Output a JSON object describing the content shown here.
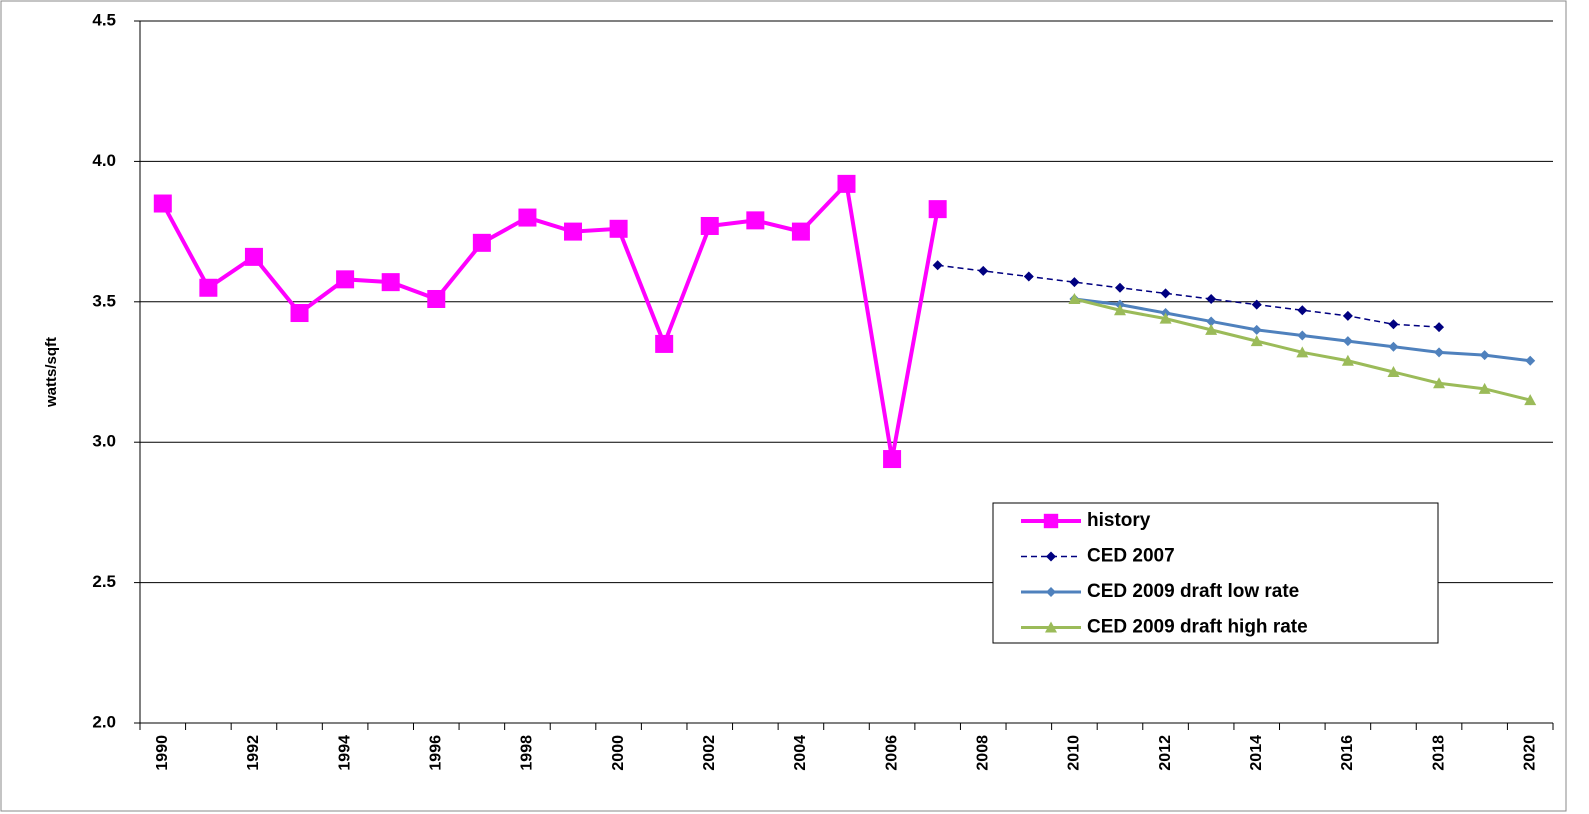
{
  "chart_data": {
    "type": "line",
    "y_label": "watts/sqft",
    "categories": [
      "1990",
      null,
      "1992",
      null,
      "1994",
      null,
      "1996",
      null,
      "1998",
      null,
      "2000",
      null,
      "2002",
      null,
      "2004",
      null,
      "2006",
      null,
      "2008",
      null,
      "2010",
      null,
      "2012",
      null,
      "2014",
      null,
      "2016",
      null,
      "2018",
      null,
      "2020"
    ],
    "ylim": [
      2.0,
      4.5
    ],
    "yticks": [
      {
        "value": 2,
        "label": "2.0"
      },
      2.5,
      {
        "value": 3,
        "label": "3.0"
      },
      3.5,
      {
        "value": 4,
        "label": "4.0"
      },
      4.5
    ],
    "grid": true,
    "legend_position": "lower-right",
    "series": [
      {
        "name": "history",
        "color": "#ff00ff",
        "marker": "square",
        "dashed": false,
        "values": [
          3.85,
          3.55,
          3.66,
          3.46,
          3.58,
          3.57,
          3.51,
          3.71,
          3.8,
          3.75,
          3.76,
          3.35,
          3.77,
          3.79,
          3.75,
          3.92,
          2.94,
          3.83,
          null,
          null,
          null,
          null,
          null,
          null,
          null,
          null,
          null,
          null,
          null,
          null,
          null
        ]
      },
      {
        "name": "CED 2007",
        "color": "#000080",
        "marker": "diamond",
        "dashed": true,
        "values": [
          null,
          null,
          null,
          null,
          null,
          null,
          null,
          null,
          null,
          null,
          null,
          null,
          null,
          null,
          null,
          null,
          null,
          3.63,
          3.61,
          3.59,
          3.57,
          3.55,
          3.53,
          3.51,
          3.49,
          3.47,
          3.45,
          3.42,
          3.41,
          null,
          null
        ]
      },
      {
        "name": "CED 2009 draft low rate",
        "color": "#4f81bd",
        "marker": "diamond",
        "dashed": false,
        "values": [
          null,
          null,
          null,
          null,
          null,
          null,
          null,
          null,
          null,
          null,
          null,
          null,
          null,
          null,
          null,
          null,
          null,
          null,
          null,
          null,
          3.51,
          3.49,
          3.46,
          3.43,
          3.4,
          3.38,
          3.36,
          3.34,
          3.32,
          3.31,
          3.29
        ]
      },
      {
        "name": "CED 2009 draft high rate",
        "color": "#9bbb59",
        "marker": "triangle",
        "dashed": false,
        "values": [
          null,
          null,
          null,
          null,
          null,
          null,
          null,
          null,
          null,
          null,
          null,
          null,
          null,
          null,
          null,
          null,
          null,
          null,
          null,
          null,
          3.51,
          3.47,
          3.44,
          3.4,
          3.36,
          3.32,
          3.29,
          3.25,
          3.21,
          3.19,
          3.15
        ]
      }
    ]
  }
}
